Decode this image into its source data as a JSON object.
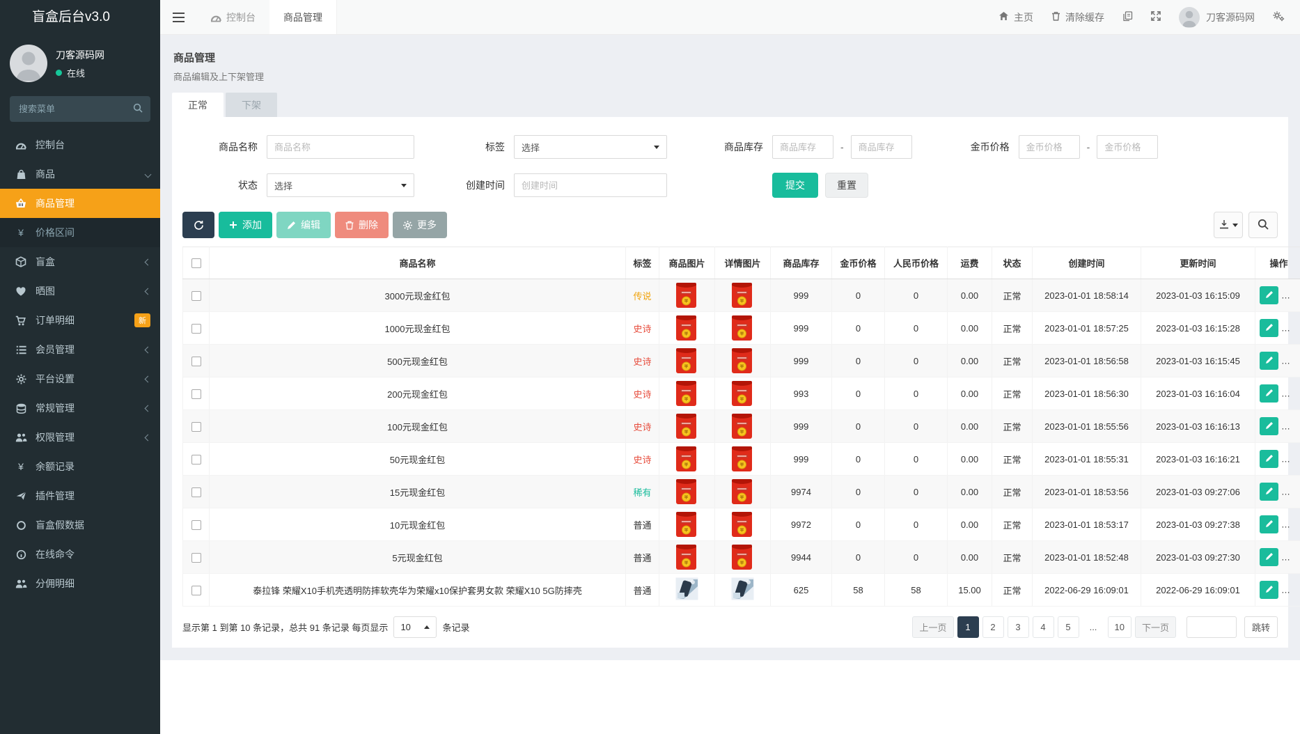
{
  "app": {
    "title": "盲盒后台v3.0"
  },
  "colors": {
    "sidebar_bg": "#222d32",
    "accent_orange": "#f6a118",
    "accent_teal": "#18bc9c",
    "navy": "#2c3e50",
    "danger": "#e74c3c",
    "online_green": "#16c79a"
  },
  "sidebar": {
    "user": {
      "name": "刀客源码网",
      "status": "在线"
    },
    "search_placeholder": "搜索菜单",
    "items": [
      {
        "key": "dashboard",
        "label": "控制台",
        "icon": "gauge"
      },
      {
        "key": "goods",
        "label": "商品",
        "icon": "bag",
        "chevron": "down"
      },
      {
        "key": "goods-manage",
        "label": "商品管理",
        "icon": "basket",
        "active": true,
        "submenu": true
      },
      {
        "key": "price-range",
        "label": "价格区间",
        "icon": "yen",
        "submenu": true
      },
      {
        "key": "blind-box",
        "label": "盲盒",
        "icon": "cube",
        "chevron": "left"
      },
      {
        "key": "photos",
        "label": "晒图",
        "icon": "heart",
        "chevron": "left"
      },
      {
        "key": "orders",
        "label": "订单明细",
        "icon": "cart",
        "badge": "新"
      },
      {
        "key": "members",
        "label": "会员管理",
        "icon": "list",
        "chevron": "left"
      },
      {
        "key": "platform-settings",
        "label": "平台设置",
        "icon": "gear",
        "chevron": "left"
      },
      {
        "key": "general-manage",
        "label": "常规管理",
        "icon": "database",
        "chevron": "left"
      },
      {
        "key": "permissions",
        "label": "权限管理",
        "icon": "users",
        "chevron": "left"
      },
      {
        "key": "balance-records",
        "label": "余额记录",
        "icon": "yen"
      },
      {
        "key": "plugins",
        "label": "插件管理",
        "icon": "plane"
      },
      {
        "key": "fake-data",
        "label": "盲盒假数据",
        "icon": "circle"
      },
      {
        "key": "online-command",
        "label": "在线命令",
        "icon": "info"
      },
      {
        "key": "commission",
        "label": "分佣明细",
        "icon": "users"
      }
    ]
  },
  "topbar": {
    "tabs": [
      {
        "key": "dashboard",
        "label": "控制台",
        "icon": "gauge"
      },
      {
        "key": "goods-manage",
        "label": "商品管理",
        "active": true
      }
    ],
    "home_label": "主页",
    "clear_cache_label": "清除缓存",
    "username": "刀客源码网"
  },
  "page": {
    "title": "商品管理",
    "subtitle": "商品编辑及上下架管理",
    "tabs": [
      {
        "key": "normal",
        "label": "正常",
        "active": true
      },
      {
        "key": "off-shelf",
        "label": "下架"
      }
    ]
  },
  "filters": {
    "name_label": "商品名称",
    "name_placeholder": "商品名称",
    "tag_label": "标签",
    "tag_value": "选择",
    "stock_label": "商品库存",
    "stock_placeholder": "商品库存",
    "gold_label": "金币价格",
    "gold_placeholder": "金币价格",
    "status_label": "状态",
    "status_value": "选择",
    "created_label": "创建时间",
    "created_placeholder": "创建时间",
    "range_sep": "-",
    "submit_label": "提交",
    "reset_label": "重置"
  },
  "toolbar": {
    "add_label": "添加",
    "edit_label": "编辑",
    "delete_label": "删除",
    "more_label": "更多"
  },
  "table": {
    "headers": [
      "商品名称",
      "标签",
      "商品图片",
      "详情图片",
      "商品库存",
      "金币价格",
      "人民币价格",
      "运费",
      "状态",
      "创建时间",
      "更新时间",
      "操作"
    ],
    "rows": [
      {
        "name": "3000元现金红包",
        "tag": "传说",
        "tag_color": "#f0a30c",
        "image": "redpacket",
        "stock": "999",
        "gold": "0",
        "rmb": "0",
        "freight": "0.00",
        "status": "正常",
        "created": "2023-01-01 18:58:14",
        "updated": "2023-01-03 16:15:09"
      },
      {
        "name": "1000元现金红包",
        "tag": "史诗",
        "tag_color": "#e74c3c",
        "image": "redpacket",
        "stock": "999",
        "gold": "0",
        "rmb": "0",
        "freight": "0.00",
        "status": "正常",
        "created": "2023-01-01 18:57:25",
        "updated": "2023-01-03 16:15:28"
      },
      {
        "name": "500元现金红包",
        "tag": "史诗",
        "tag_color": "#e74c3c",
        "image": "redpacket",
        "stock": "999",
        "gold": "0",
        "rmb": "0",
        "freight": "0.00",
        "status": "正常",
        "created": "2023-01-01 18:56:58",
        "updated": "2023-01-03 16:15:45"
      },
      {
        "name": "200元现金红包",
        "tag": "史诗",
        "tag_color": "#e74c3c",
        "image": "redpacket",
        "stock": "993",
        "gold": "0",
        "rmb": "0",
        "freight": "0.00",
        "status": "正常",
        "created": "2023-01-01 18:56:30",
        "updated": "2023-01-03 16:16:04"
      },
      {
        "name": "100元现金红包",
        "tag": "史诗",
        "tag_color": "#e74c3c",
        "image": "redpacket",
        "stock": "999",
        "gold": "0",
        "rmb": "0",
        "freight": "0.00",
        "status": "正常",
        "created": "2023-01-01 18:55:56",
        "updated": "2023-01-03 16:16:13"
      },
      {
        "name": "50元现金红包",
        "tag": "史诗",
        "tag_color": "#e74c3c",
        "image": "redpacket",
        "stock": "999",
        "gold": "0",
        "rmb": "0",
        "freight": "0.00",
        "status": "正常",
        "created": "2023-01-01 18:55:31",
        "updated": "2023-01-03 16:16:21"
      },
      {
        "name": "15元现金红包",
        "tag": "稀有",
        "tag_color": "#1abc9c",
        "image": "redpacket",
        "stock": "9974",
        "gold": "0",
        "rmb": "0",
        "freight": "0.00",
        "status": "正常",
        "created": "2023-01-01 18:53:56",
        "updated": "2023-01-03 09:27:06"
      },
      {
        "name": "10元现金红包",
        "tag": "普通",
        "tag_color": "#333333",
        "image": "redpacket",
        "stock": "9972",
        "gold": "0",
        "rmb": "0",
        "freight": "0.00",
        "status": "正常",
        "created": "2023-01-01 18:53:17",
        "updated": "2023-01-03 09:27:38"
      },
      {
        "name": "5元现金红包",
        "tag": "普通",
        "tag_color": "#333333",
        "image": "redpacket",
        "stock": "9944",
        "gold": "0",
        "rmb": "0",
        "freight": "0.00",
        "status": "正常",
        "created": "2023-01-01 18:52:48",
        "updated": "2023-01-03 09:27:30"
      },
      {
        "name": "泰拉锋 荣耀X10手机壳透明防摔软壳华为荣耀x10保护套男女款 荣耀X10 5G防摔壳",
        "tag": "普通",
        "tag_color": "#333333",
        "image": "phonecase",
        "stock": "625",
        "gold": "58",
        "rmb": "58",
        "freight": "15.00",
        "status": "正常",
        "created": "2022-06-29 16:09:01",
        "updated": "2022-06-29 16:09:01"
      }
    ]
  },
  "pagination": {
    "summary_prefix": "显示第 1 到第 10 条记录，总共 91 条记录 每页显示",
    "page_size": "10",
    "summary_suffix": "条记录",
    "prev_label": "上一页",
    "next_label": "下一页",
    "pages": [
      "1",
      "2",
      "3",
      "4",
      "5",
      "...",
      "10"
    ],
    "active_page": "1",
    "jump_label": "跳转"
  }
}
